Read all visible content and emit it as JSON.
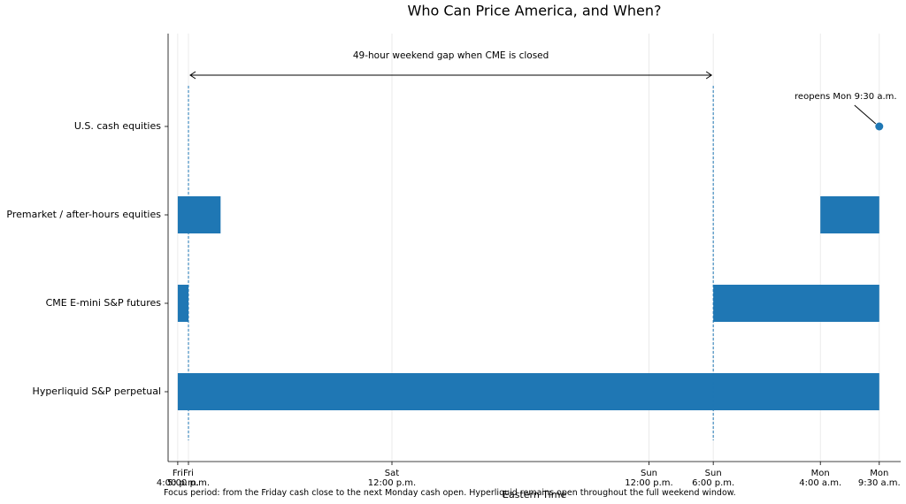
{
  "chart_data": {
    "type": "timeline",
    "title": "Who Can Price America, and When?",
    "x_label": "Eastern Time",
    "footnote": "Focus period: from the Friday cash close to the next Monday cash open. Hyperliquid remains open throughout the full weekend window.",
    "color": "#1f77b4",
    "grid": true,
    "xlim": [
      -0.9,
      67.5
    ],
    "xticks": [
      {
        "value": 0,
        "label": "Fri\n4:00 p.m."
      },
      {
        "value": 1,
        "label": "Fri\n5:00 p.m."
      },
      {
        "value": 20,
        "label": "Sat\n12:00 p.m."
      },
      {
        "value": 44,
        "label": "Sun\n12:00 p.m."
      },
      {
        "value": 50,
        "label": "Sun\n6:00 p.m."
      },
      {
        "value": 60,
        "label": "Mon\n4:00 a.m."
      },
      {
        "value": 65.5,
        "label": "Mon\n9:30 a.m."
      }
    ],
    "rows": [
      {
        "name": "U.S. cash equities",
        "points": [
          65.5
        ]
      },
      {
        "name": "Premarket / after-hours equities",
        "segments": [
          [
            0,
            4
          ],
          [
            60,
            65.5
          ]
        ]
      },
      {
        "name": "CME E-mini S&P futures",
        "segments": [
          [
            0,
            1
          ],
          [
            50,
            65.5
          ]
        ]
      },
      {
        "name": "Hyperliquid S&P perpetual",
        "segments": [
          [
            0,
            65.5
          ]
        ]
      }
    ],
    "gap": {
      "start": 1,
      "end": 50,
      "label": "49-hour weekend gap when CME is closed"
    },
    "point_annotation": "reopens Mon 9:30 a.m."
  }
}
